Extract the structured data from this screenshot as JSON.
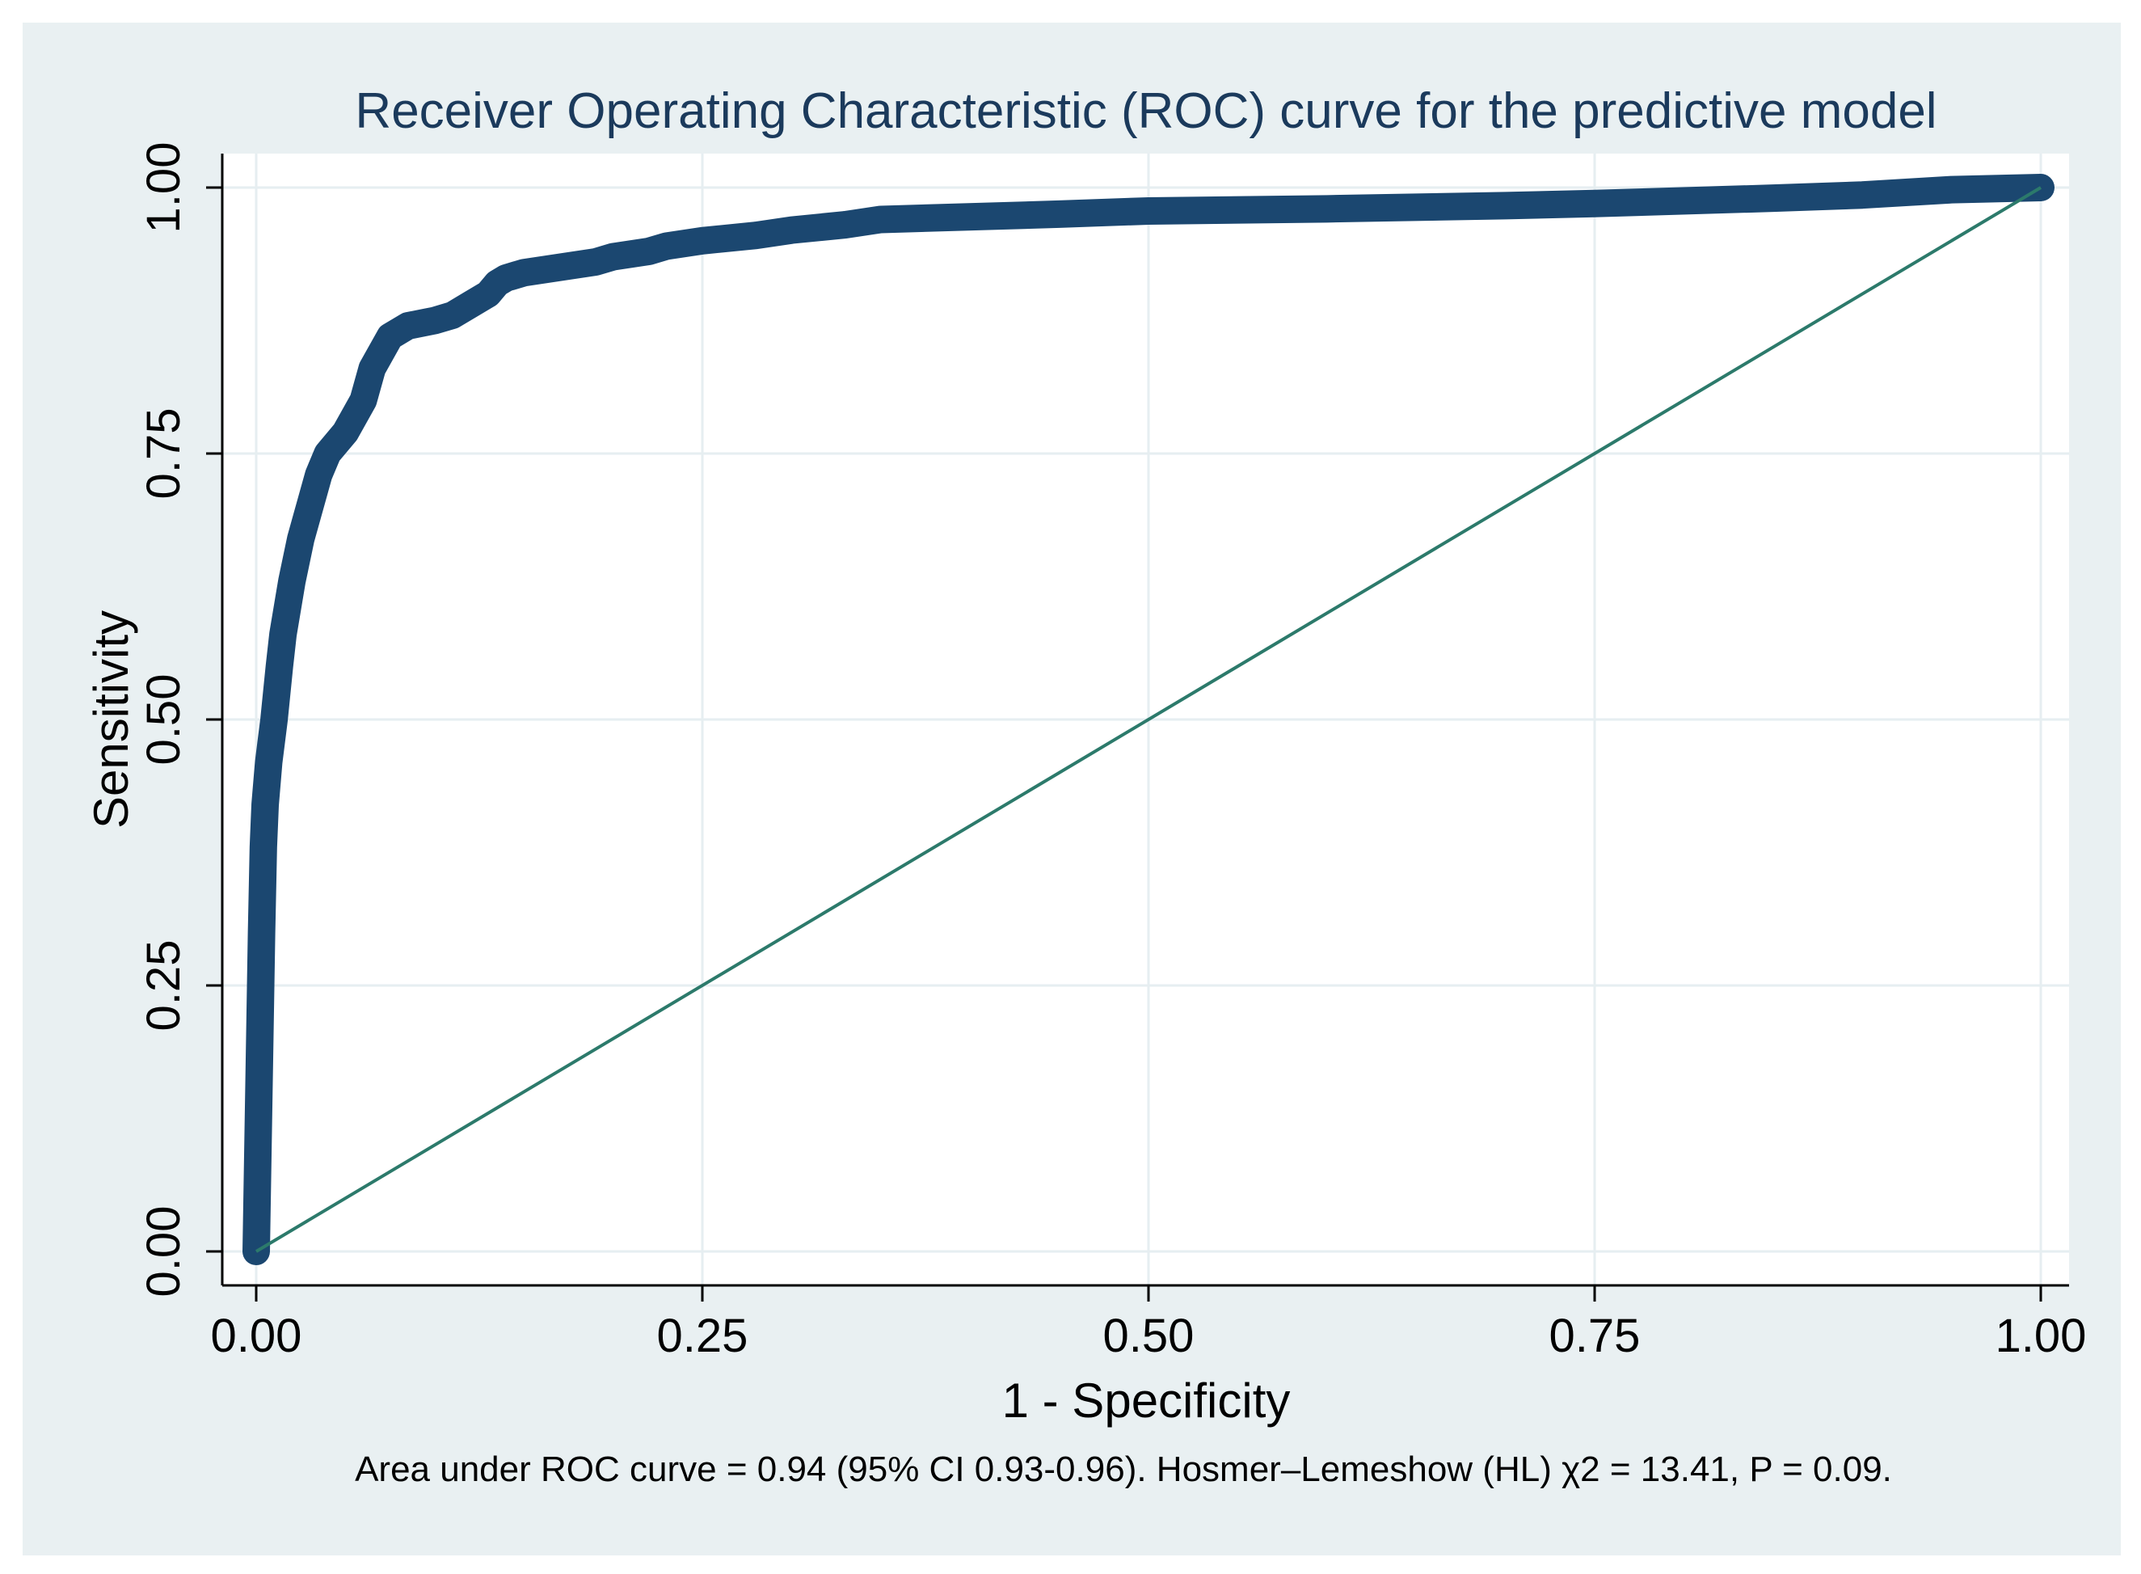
{
  "colors": {
    "outer_background": "#e9f0f2",
    "plot_background": "#ffffff",
    "grid": "#e6eef1",
    "axis": "#000000",
    "curve": "#1b4770",
    "reference_line": "#2c7a6b",
    "title": "#1b3a5c",
    "text": "#000000"
  },
  "chart_data": {
    "type": "line",
    "title": "Receiver Operating Characteristic (ROC) curve for the predictive model",
    "xlabel": "1 - Specificity",
    "ylabel": "Sensitivity",
    "xlim": [
      0,
      1
    ],
    "ylim": [
      0,
      1
    ],
    "xticks": [
      0,
      0.25,
      0.5,
      0.75,
      1
    ],
    "yticks": [
      0,
      0.25,
      0.5,
      0.75,
      1
    ],
    "xtick_labels": [
      "0.00",
      "0.25",
      "0.50",
      "0.75",
      "1.00"
    ],
    "ytick_labels": [
      "0.00",
      "0.25",
      "0.50",
      "0.75",
      "1.00"
    ],
    "grid": true,
    "note": "Area under ROC curve = 0.94  (95% CI 0.93-0.96). Hosmer–Lemeshow (HL) χ2 = 13.41, P = 0.09.",
    "series": [
      {
        "name": "ROC curve",
        "style": "thick",
        "x": [
          0,
          0.001,
          0.002,
          0.003,
          0.004,
          0.005,
          0.007,
          0.01,
          0.013,
          0.015,
          0.018,
          0.02,
          0.025,
          0.03,
          0.035,
          0.04,
          0.05,
          0.06,
          0.065,
          0.075,
          0.085,
          0.1,
          0.11,
          0.12,
          0.13,
          0.135,
          0.14,
          0.15,
          0.17,
          0.19,
          0.2,
          0.22,
          0.23,
          0.25,
          0.28,
          0.3,
          0.33,
          0.35,
          0.45,
          0.5,
          0.6,
          0.7,
          0.75,
          0.85,
          0.9,
          0.95,
          1.0
        ],
        "y": [
          0,
          0.1,
          0.2,
          0.3,
          0.38,
          0.42,
          0.46,
          0.5,
          0.55,
          0.58,
          0.61,
          0.63,
          0.67,
          0.7,
          0.73,
          0.75,
          0.77,
          0.8,
          0.83,
          0.86,
          0.87,
          0.875,
          0.88,
          0.89,
          0.9,
          0.91,
          0.915,
          0.92,
          0.925,
          0.93,
          0.935,
          0.94,
          0.945,
          0.95,
          0.955,
          0.96,
          0.965,
          0.97,
          0.975,
          0.978,
          0.98,
          0.983,
          0.985,
          0.99,
          0.993,
          0.998,
          1.0
        ]
      },
      {
        "name": "Reference line",
        "style": "thin",
        "x": [
          0,
          1
        ],
        "y": [
          0,
          1
        ]
      }
    ]
  }
}
